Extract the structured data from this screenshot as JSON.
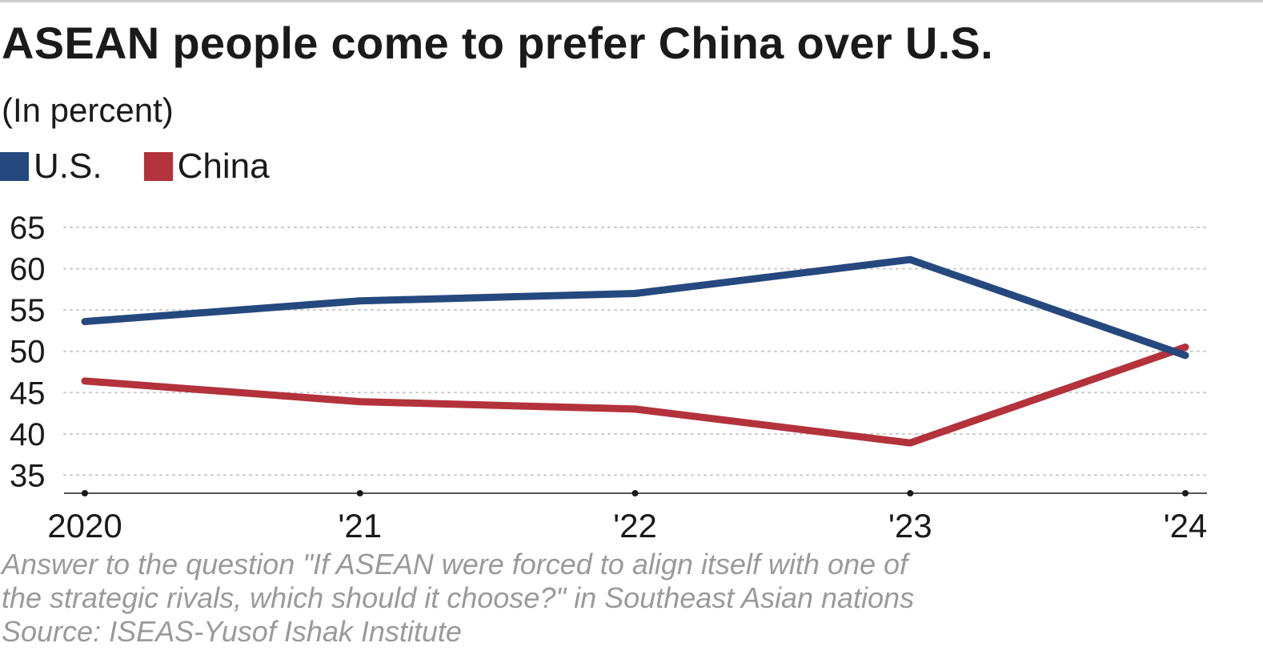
{
  "title": "ASEAN people come to prefer China over U.S.",
  "subtitle": "(In percent)",
  "note_lines": [
    "Answer to the question \"If ASEAN were forced to align itself with one of",
    "the strategic rivals, which should it choose?\" in Southeast Asian nations",
    "Source: ISEAS-Yusof Ishak Institute"
  ],
  "colors": {
    "us": "#25497e",
    "china": "#b3323b",
    "grid": "#c8c8c8",
    "axis": "#555555"
  },
  "chart_data": {
    "type": "line",
    "categories": [
      "2020",
      "'21",
      "'22",
      "'23",
      "'24"
    ],
    "series": [
      {
        "name": "U.S.",
        "values": [
          53.6,
          56.1,
          57.0,
          61.1,
          49.5
        ]
      },
      {
        "name": "China",
        "values": [
          46.4,
          43.9,
          43.0,
          38.9,
          50.5
        ]
      }
    ],
    "ylim": [
      33,
      65
    ],
    "yticks": [
      35,
      40,
      45,
      50,
      55,
      60,
      65
    ],
    "grid": true,
    "legend_position": "top-left",
    "xlabel": "",
    "ylabel": ""
  }
}
